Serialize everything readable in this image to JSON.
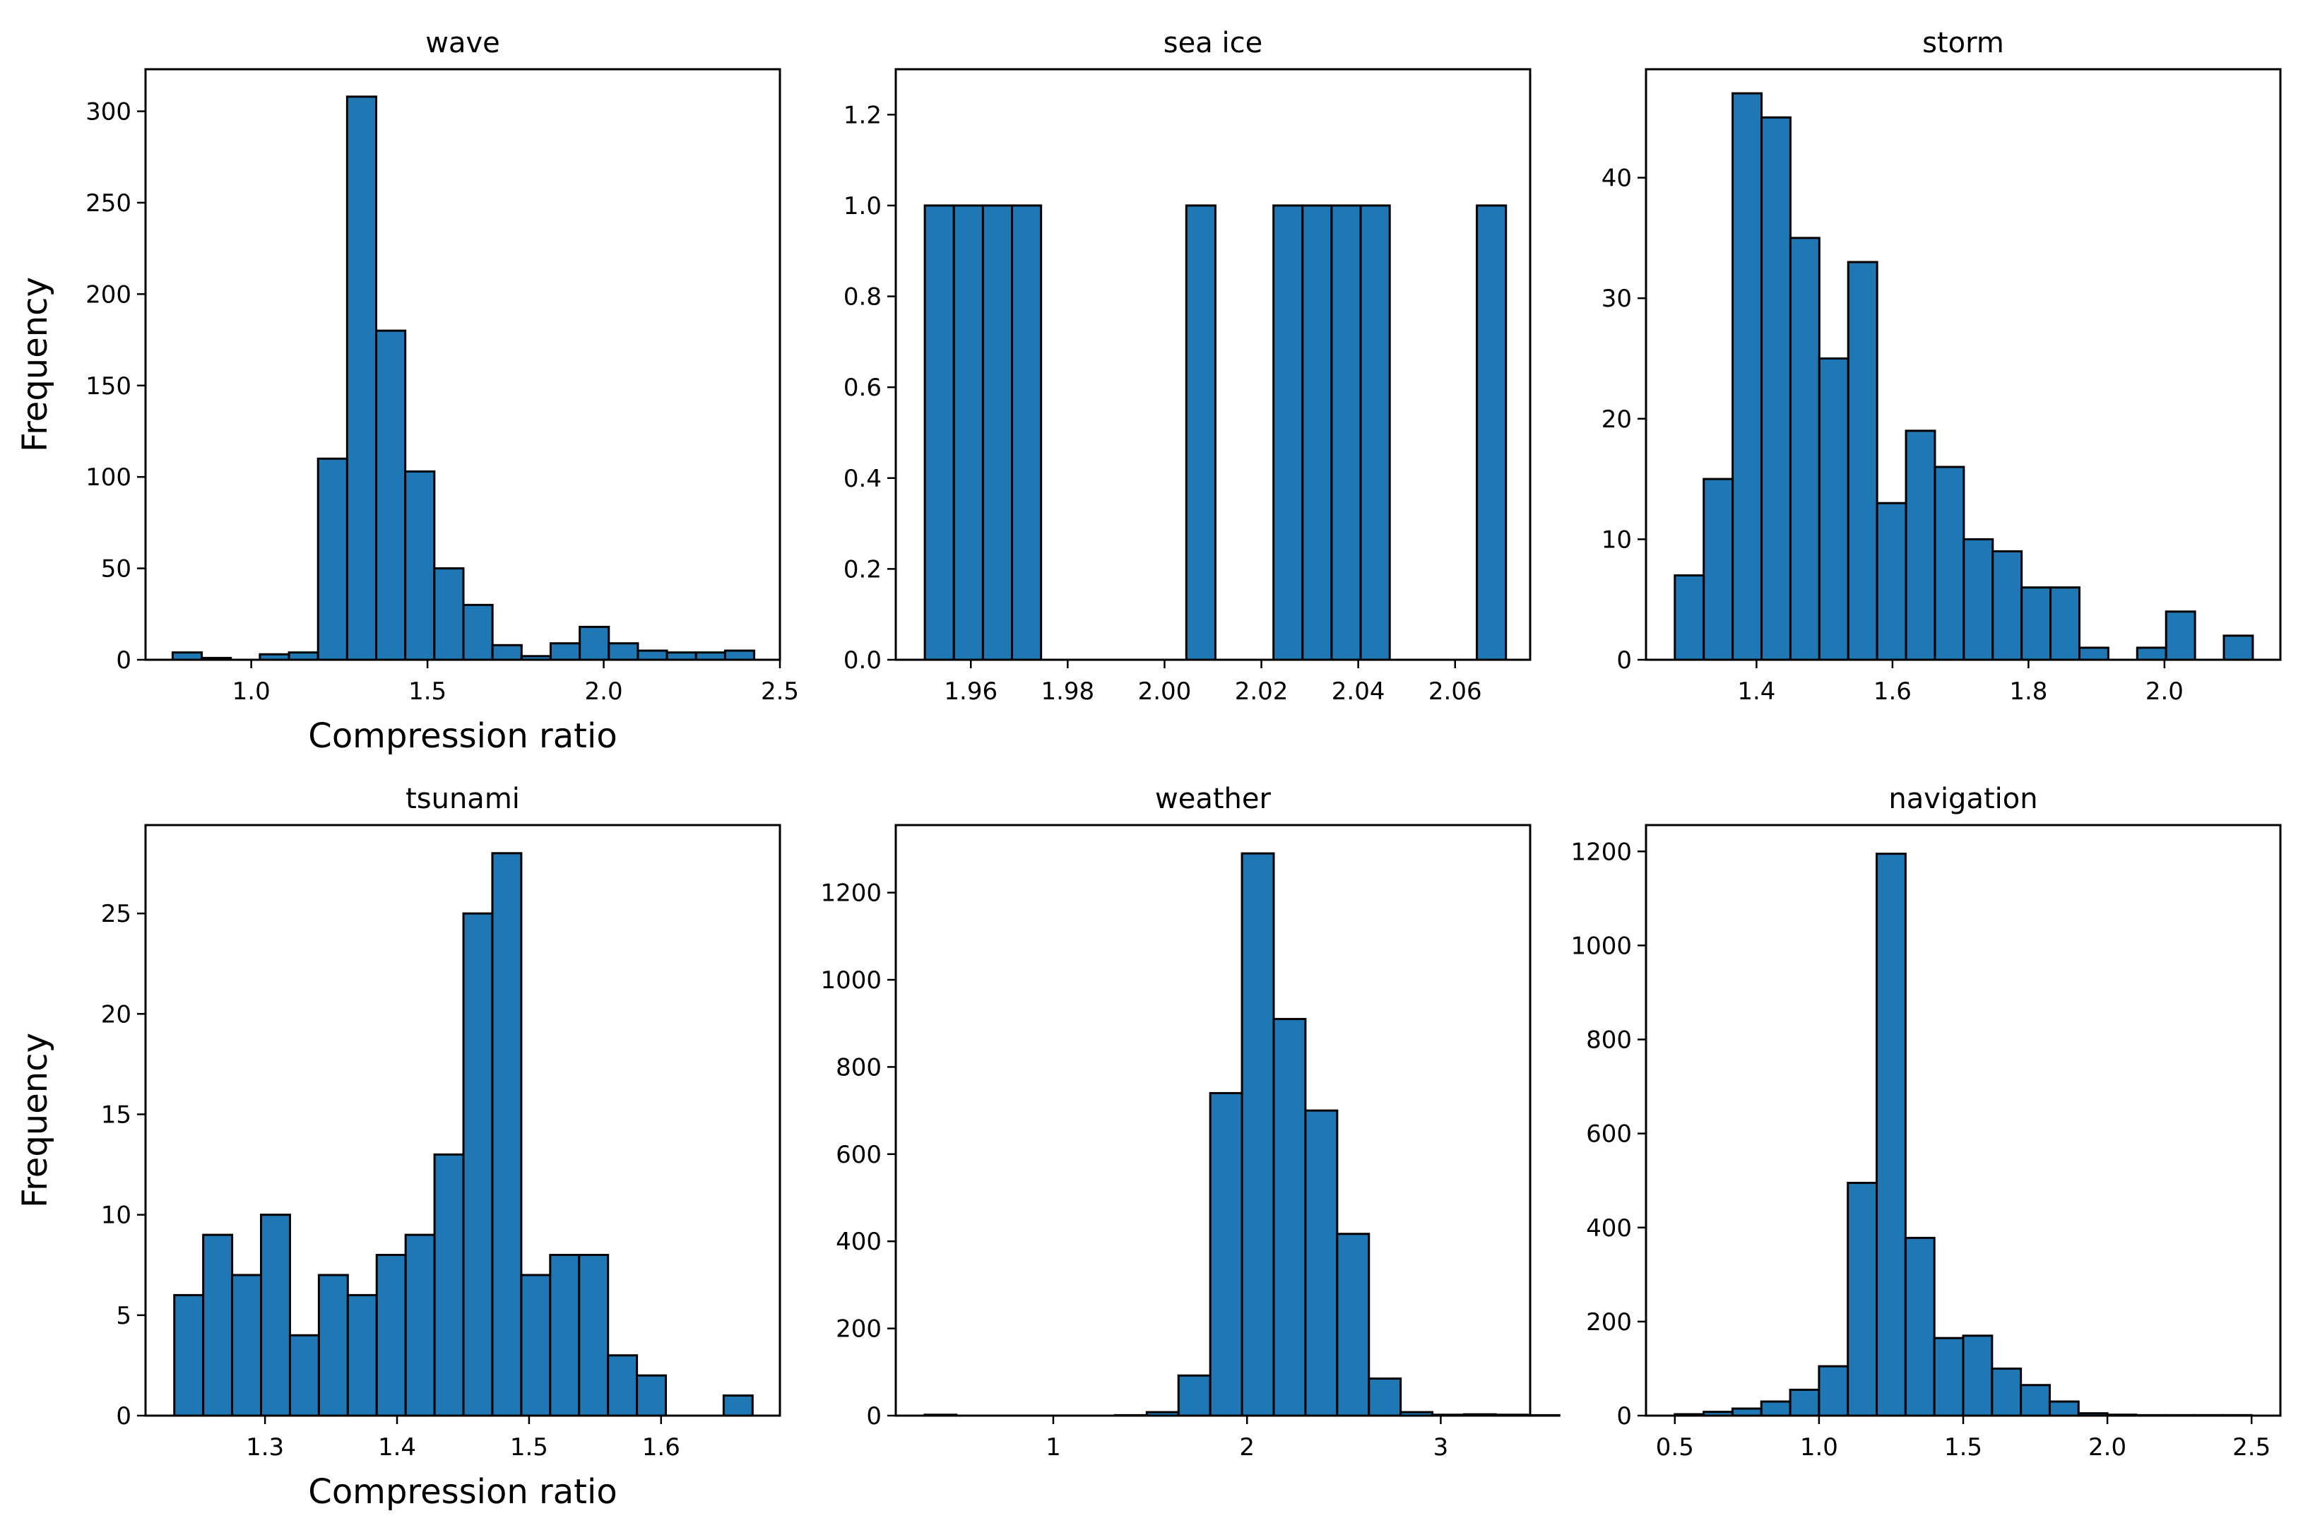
{
  "figure": {
    "colors": {
      "bar_fill": "#1f77b4",
      "bar_edge": "#000000",
      "background": "#ffffff"
    }
  },
  "chart_data": [
    {
      "type": "bar",
      "title": "wave",
      "xlabel": "Compression ratio",
      "ylabel": "Frequency",
      "xlim": [
        0.7,
        2.5
      ],
      "ylim": [
        0,
        323
      ],
      "xticks": [
        1.0,
        1.5,
        2.0,
        2.5
      ],
      "xtick_labels": [
        "1.0",
        "1.5",
        "2.0",
        "2.5"
      ],
      "yticks": [
        0,
        50,
        100,
        150,
        200,
        250,
        300
      ],
      "ytick_labels": [
        "0",
        "50",
        "100",
        "150",
        "200",
        "250",
        "300"
      ],
      "bin_start": 0.777,
      "bin_width": 0.0825,
      "values": [
        4,
        1,
        0,
        3,
        4,
        110,
        308,
        180,
        103,
        50,
        30,
        8,
        2,
        9,
        18,
        9,
        5,
        4,
        4,
        5
      ]
    },
    {
      "type": "bar",
      "title": "sea ice",
      "xlabel": "",
      "ylabel": "",
      "xlim": [
        1.9445,
        2.0755
      ],
      "ylim": [
        0,
        1.3
      ],
      "xticks": [
        1.96,
        1.98,
        2.0,
        2.02,
        2.04,
        2.06
      ],
      "xtick_labels": [
        "1.96",
        "1.98",
        "2.00",
        "2.02",
        "2.04",
        "2.06"
      ],
      "yticks": [
        0,
        0.2,
        0.4,
        0.6,
        0.8,
        1.0,
        1.2
      ],
      "ytick_labels": [
        "0.0",
        "0.2",
        "0.4",
        "0.6",
        "0.8",
        "1.0",
        "1.2"
      ],
      "bin_start": 1.9505,
      "bin_width": 0.006,
      "values": [
        1,
        1,
        1,
        1,
        0,
        0,
        0,
        0,
        0,
        1,
        0,
        0,
        1,
        1,
        1,
        1,
        0,
        0,
        0,
        1
      ]
    },
    {
      "type": "bar",
      "title": "storm",
      "xlabel": "",
      "ylabel": "",
      "xlim": [
        1.2375,
        2.1705
      ],
      "ylim": [
        0,
        49
      ],
      "xticks": [
        1.4,
        1.6,
        1.8,
        2.0
      ],
      "xtick_labels": [
        "1.4",
        "1.6",
        "1.8",
        "2.0"
      ],
      "yticks": [
        0,
        10,
        20,
        30,
        40
      ],
      "ytick_labels": [
        "0",
        "10",
        "20",
        "30",
        "40"
      ],
      "bin_start": 1.2799,
      "bin_width": 0.0425,
      "values": [
        7,
        15,
        47,
        45,
        35,
        25,
        33,
        13,
        19,
        16,
        10,
        9,
        6,
        6,
        1,
        0,
        1,
        4,
        0,
        2
      ]
    },
    {
      "type": "bar",
      "title": "tsunami",
      "xlabel": "Compression ratio",
      "ylabel": "Frequency",
      "xlim": [
        1.2095,
        1.69
      ],
      "ylim": [
        0,
        29.4
      ],
      "xticks": [
        1.3,
        1.4,
        1.5,
        1.6
      ],
      "xtick_labels": [
        "1.3",
        "1.4",
        "1.5",
        "1.6"
      ],
      "yticks": [
        0,
        5,
        10,
        15,
        20,
        25
      ],
      "ytick_labels": [
        "0",
        "5",
        "10",
        "15",
        "20",
        "25"
      ],
      "bin_start": 1.2313,
      "bin_width": 0.0219,
      "values": [
        6,
        9,
        7,
        10,
        4,
        7,
        6,
        8,
        9,
        13,
        25,
        28,
        7,
        8,
        8,
        3,
        2,
        0,
        0,
        1
      ]
    },
    {
      "type": "bar",
      "title": "weather",
      "xlabel": "",
      "ylabel": "",
      "xlim": [
        0.187,
        3.4615
      ],
      "ylim": [
        0,
        1355
      ],
      "xticks": [
        1,
        2,
        3
      ],
      "xtick_labels": [
        "1",
        "2",
        "3"
      ],
      "yticks": [
        0,
        200,
        400,
        600,
        800,
        1000,
        1200
      ],
      "ytick_labels": [
        "0",
        "200",
        "400",
        "600",
        "800",
        "1000",
        "1200"
      ],
      "bin_start": 0.336,
      "bin_width": 0.1638,
      "values": [
        2,
        0,
        0,
        0,
        0,
        0,
        1,
        8,
        92,
        740,
        1290,
        910,
        700,
        417,
        85,
        8,
        2,
        3,
        2,
        1
      ]
    },
    {
      "type": "bar",
      "title": "navigation",
      "xlabel": "",
      "ylabel": "",
      "xlim": [
        0.4,
        2.6
      ],
      "ylim": [
        0,
        1256
      ],
      "xticks": [
        0.5,
        1.0,
        1.5,
        2.0,
        2.5
      ],
      "xtick_labels": [
        "0.5",
        "1.0",
        "1.5",
        "2.0",
        "2.5"
      ],
      "yticks": [
        0,
        200,
        400,
        600,
        800,
        1000,
        1200
      ],
      "ytick_labels": [
        "0",
        "200",
        "400",
        "600",
        "800",
        "1000",
        "1200"
      ],
      "bin_start": 0.5,
      "bin_width": 0.1,
      "values": [
        3,
        8,
        15,
        30,
        55,
        105,
        495,
        1195,
        378,
        165,
        170,
        100,
        65,
        30,
        5,
        2,
        1,
        1,
        1,
        1
      ]
    }
  ]
}
